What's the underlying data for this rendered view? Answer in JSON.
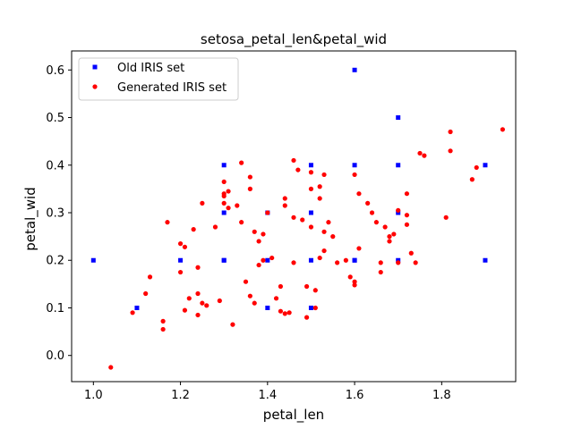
{
  "chart_data": {
    "type": "scatter",
    "title": "setosa_petal_len&petal_wid",
    "xlabel": "petal_len",
    "ylabel": "petal_wid",
    "xlim": [
      0.95,
      1.97
    ],
    "ylim": [
      -0.055,
      0.64
    ],
    "xticks": [
      "1.0",
      "1.2",
      "1.4",
      "1.6",
      "1.8"
    ],
    "xtick_values": [
      1.0,
      1.2,
      1.4,
      1.6,
      1.8
    ],
    "yticks": [
      "0.0",
      "0.1",
      "0.2",
      "0.3",
      "0.4",
      "0.5",
      "0.6"
    ],
    "ytick_values": [
      0.0,
      0.1,
      0.2,
      0.3,
      0.4,
      0.5,
      0.6
    ],
    "grid": false,
    "legend_position": "top-left",
    "series": [
      {
        "name": "Old IRIS set",
        "color": "#0000ff",
        "marker": "square",
        "x": [
          1.0,
          1.1,
          1.2,
          1.3,
          1.3,
          1.3,
          1.3,
          1.4,
          1.4,
          1.4,
          1.5,
          1.5,
          1.5,
          1.5,
          1.6,
          1.6,
          1.6,
          1.6,
          1.7,
          1.7,
          1.7,
          1.7,
          1.9,
          1.9
        ],
        "y": [
          0.2,
          0.1,
          0.2,
          0.2,
          0.3,
          0.4,
          0.2,
          0.1,
          0.2,
          0.3,
          0.1,
          0.2,
          0.3,
          0.4,
          0.2,
          0.4,
          0.6,
          0.2,
          0.2,
          0.3,
          0.4,
          0.5,
          0.2,
          0.4
        ]
      },
      {
        "name": "Generated IRIS set",
        "color": "#ff0000",
        "marker": "circle",
        "x": [
          1.04,
          1.09,
          1.12,
          1.13,
          1.16,
          1.16,
          1.17,
          1.2,
          1.2,
          1.21,
          1.21,
          1.22,
          1.23,
          1.24,
          1.24,
          1.24,
          1.25,
          1.25,
          1.26,
          1.28,
          1.29,
          1.3,
          1.3,
          1.3,
          1.3,
          1.31,
          1.31,
          1.32,
          1.33,
          1.34,
          1.34,
          1.35,
          1.36,
          1.36,
          1.36,
          1.37,
          1.37,
          1.38,
          1.38,
          1.39,
          1.39,
          1.4,
          1.41,
          1.42,
          1.43,
          1.43,
          1.44,
          1.44,
          1.44,
          1.45,
          1.46,
          1.46,
          1.46,
          1.47,
          1.48,
          1.49,
          1.49,
          1.5,
          1.5,
          1.5,
          1.51,
          1.51,
          1.52,
          1.52,
          1.52,
          1.53,
          1.53,
          1.53,
          1.54,
          1.55,
          1.56,
          1.58,
          1.59,
          1.6,
          1.6,
          1.6,
          1.61,
          1.61,
          1.63,
          1.64,
          1.65,
          1.66,
          1.66,
          1.67,
          1.68,
          1.68,
          1.69,
          1.7,
          1.7,
          1.72,
          1.72,
          1.72,
          1.73,
          1.74,
          1.75,
          1.76,
          1.81,
          1.82,
          1.82,
          1.87,
          1.88,
          1.94
        ],
        "y": [
          -0.025,
          0.09,
          0.13,
          0.165,
          0.072,
          0.055,
          0.28,
          0.235,
          0.175,
          0.228,
          0.095,
          0.12,
          0.265,
          0.13,
          0.085,
          0.185,
          0.32,
          0.11,
          0.105,
          0.27,
          0.115,
          0.365,
          0.335,
          0.32,
          0.34,
          0.31,
          0.345,
          0.065,
          0.315,
          0.28,
          0.405,
          0.155,
          0.35,
          0.375,
          0.125,
          0.11,
          0.26,
          0.24,
          0.19,
          0.255,
          0.2,
          0.3,
          0.205,
          0.12,
          0.093,
          0.145,
          0.088,
          0.33,
          0.315,
          0.09,
          0.41,
          0.29,
          0.195,
          0.39,
          0.285,
          0.08,
          0.145,
          0.385,
          0.35,
          0.27,
          0.137,
          0.1,
          0.205,
          0.355,
          0.33,
          0.38,
          0.26,
          0.22,
          0.28,
          0.25,
          0.195,
          0.2,
          0.165,
          0.38,
          0.155,
          0.148,
          0.225,
          0.34,
          0.32,
          0.3,
          0.28,
          0.195,
          0.175,
          0.27,
          0.25,
          0.24,
          0.255,
          0.305,
          0.195,
          0.34,
          0.275,
          0.295,
          0.215,
          0.195,
          0.425,
          0.42,
          0.29,
          0.47,
          0.43,
          0.37,
          0.395,
          0.475
        ]
      }
    ]
  }
}
